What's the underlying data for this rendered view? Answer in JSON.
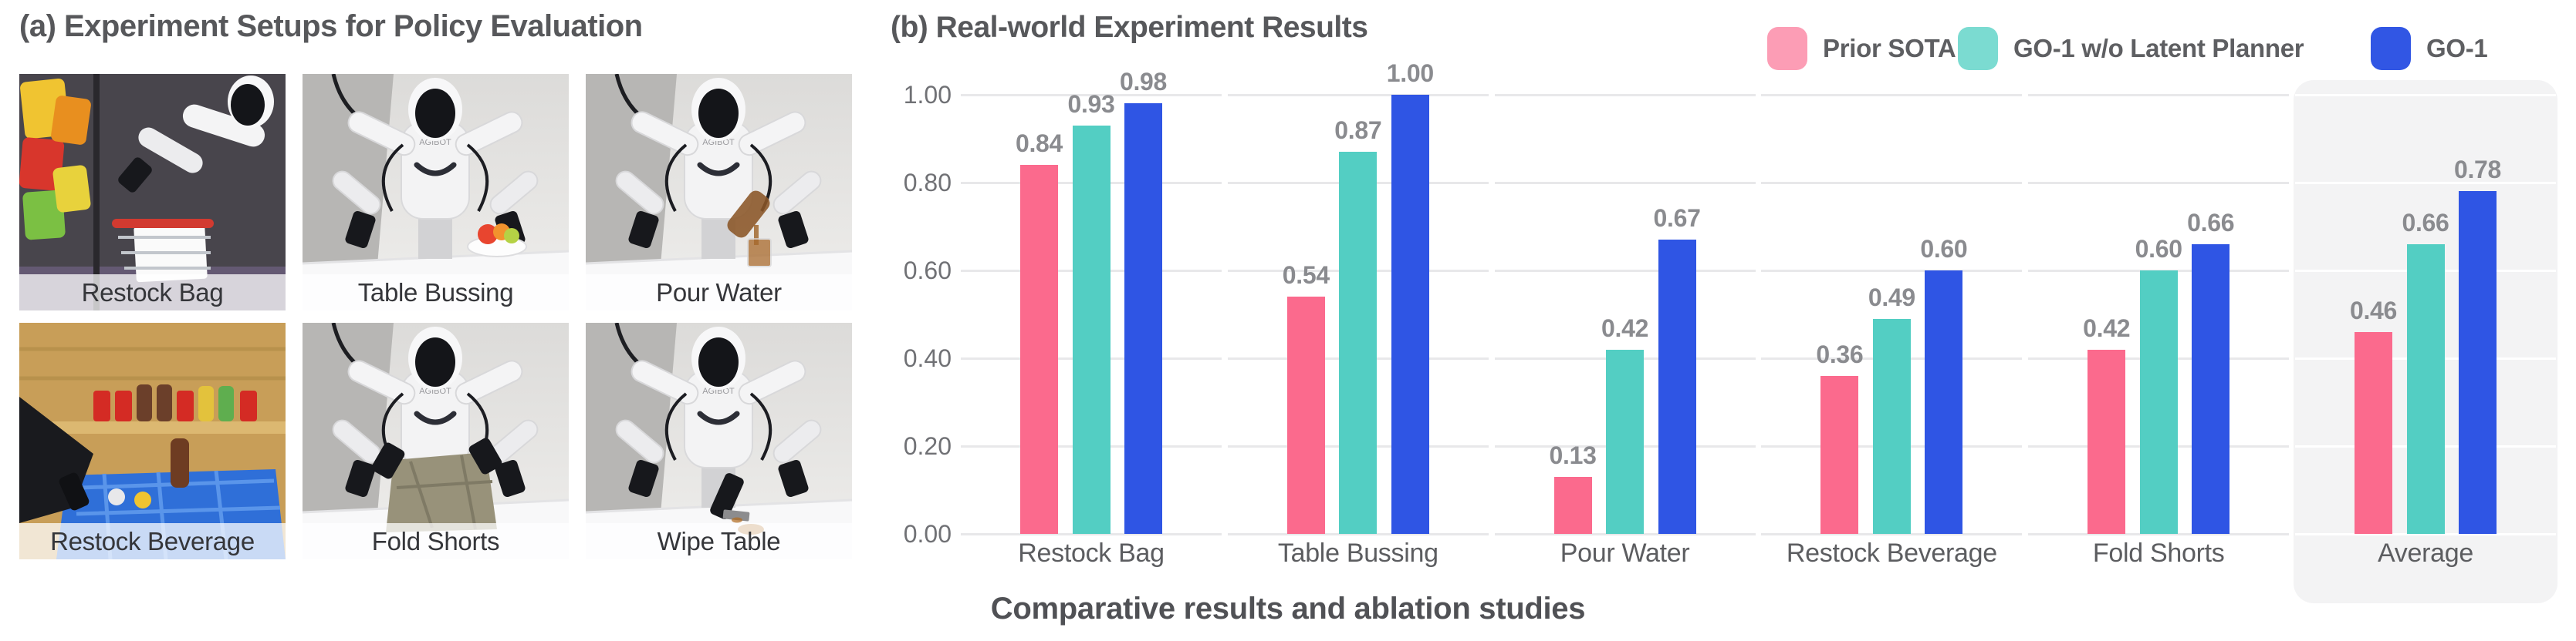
{
  "panel_a": {
    "title": "(a) Experiment Setups for Policy Evaluation",
    "setups": [
      {
        "label": "Restock Bag",
        "scene": "restock-bag"
      },
      {
        "label": "Table Bussing",
        "scene": "table-bussing"
      },
      {
        "label": "Pour Water",
        "scene": "pour-water"
      },
      {
        "label": "Restock Beverage",
        "scene": "restock-beverage"
      },
      {
        "label": "Fold Shorts",
        "scene": "fold-shorts"
      },
      {
        "label": "Wipe Table",
        "scene": "wipe-table"
      }
    ]
  },
  "panel_b": {
    "title": "(b) Real-world Experiment Results",
    "caption": "Comparative results and ablation studies",
    "legend": [
      {
        "label": "Prior SOTA",
        "color": "#fc9db5"
      },
      {
        "label": "GO-1 w/o Latent Planner",
        "color": "#7bdbd1"
      },
      {
        "label": "GO-1",
        "color": "#3156e4"
      }
    ]
  },
  "chart_data": {
    "type": "bar",
    "title": "(b) Real-world Experiment Results",
    "categories": [
      "Restock Bag",
      "Table Bussing",
      "Pour Water",
      "Restock Beverage",
      "Fold Shorts",
      "Average"
    ],
    "series": [
      {
        "name": "Prior SOTA",
        "color": "#fb6a8d",
        "values": [
          0.84,
          0.54,
          0.13,
          0.36,
          0.42,
          0.46
        ]
      },
      {
        "name": "GO-1 w/o Latent Planner",
        "color": "#53cec3",
        "values": [
          0.93,
          0.87,
          0.42,
          0.49,
          0.6,
          0.66
        ]
      },
      {
        "name": "GO-1",
        "color": "#2f55e4",
        "values": [
          0.98,
          1.0,
          0.67,
          0.6,
          0.66,
          0.78
        ]
      }
    ],
    "yticks": [
      "0.00",
      "0.20",
      "0.40",
      "0.60",
      "0.80",
      "1.00"
    ],
    "ylim": [
      0.0,
      1.0
    ],
    "grid": true,
    "value_labels": true,
    "legend_position": "top-right",
    "highlighted_category": "Average",
    "xlabel": "",
    "ylabel": ""
  }
}
